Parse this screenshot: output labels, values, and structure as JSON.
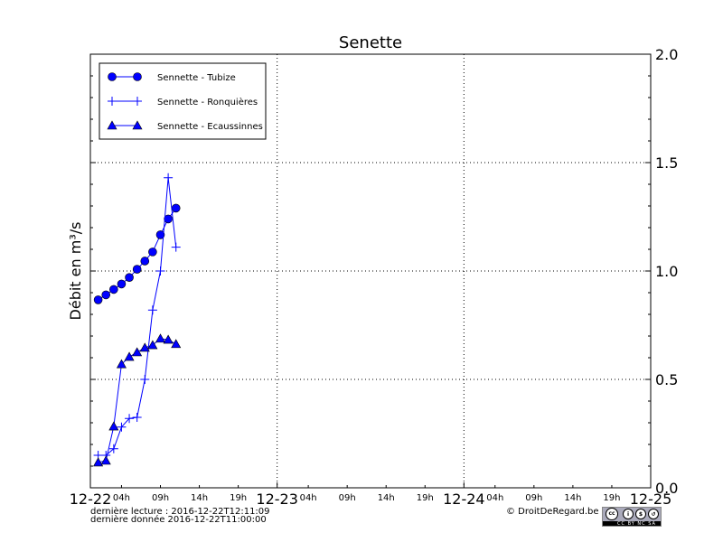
{
  "chart_data": {
    "type": "line",
    "title": "Senette",
    "ylabel": "Débit en m³/s",
    "xlabel": "",
    "xlim": [
      "2016-12-22T00:00",
      "2016-12-25T00:00"
    ],
    "ylim": [
      0,
      2.0
    ],
    "grid": true,
    "legend_placement": "top-left",
    "x_major_ticks": [
      "12-22",
      "12-23",
      "12-24",
      "12-25"
    ],
    "x_minor_ticks": [
      "04h",
      "09h",
      "14h",
      "19h"
    ],
    "y_ticks": [
      "0.0",
      "0.5",
      "1.0",
      "1.5",
      "2.0"
    ],
    "x": [
      "2016-12-22T01:00",
      "2016-12-22T02:00",
      "2016-12-22T03:00",
      "2016-12-22T04:00",
      "2016-12-22T05:00",
      "2016-12-22T06:00",
      "2016-12-22T07:00",
      "2016-12-22T08:00",
      "2016-12-22T09:00",
      "2016-12-22T10:00",
      "2016-12-22T11:00"
    ],
    "series": [
      {
        "name": "Sennette - Tubize",
        "marker": "circle",
        "color": "#0000ff",
        "values": [
          0.867,
          0.89,
          0.915,
          0.94,
          0.97,
          1.008,
          1.046,
          1.088,
          1.167,
          1.24,
          1.29
        ]
      },
      {
        "name": "Sennette - Ronquières",
        "marker": "plus",
        "color": "#0000ff",
        "values": [
          0.15,
          0.15,
          0.18,
          0.28,
          0.32,
          0.325,
          0.5,
          0.82,
          1.0,
          1.43,
          1.11
        ]
      },
      {
        "name": "Sennette - Ecaussinnes",
        "marker": "triangle",
        "color": "#0000ff",
        "values": [
          0.117,
          0.125,
          0.283,
          0.57,
          0.604,
          0.625,
          0.646,
          0.658,
          0.688,
          0.683,
          0.663
        ]
      }
    ]
  },
  "footer": {
    "last_read": "dernière lecture : 2016-12-22T12:11:09",
    "last_data": "dernière donnée  2016-12-22T11:00:00",
    "copyright": "© DroitDeRegard.be",
    "license": "CC BY NC SA"
  }
}
